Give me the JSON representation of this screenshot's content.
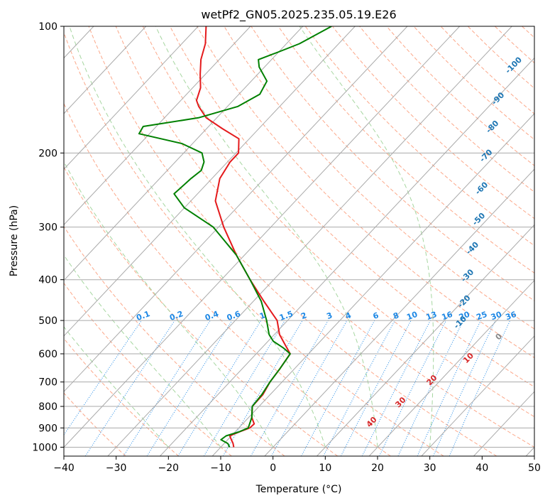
{
  "chart_data": {
    "type": "line",
    "title": "wetPf2_GN05.2025.235.05.19.E26",
    "xlabel": "Temperature (°C)",
    "ylabel": "Pressure (hPa)",
    "xlim": [
      -40,
      50
    ],
    "ylim": [
      1050,
      100
    ],
    "x_ticks": [
      -40,
      -30,
      -20,
      -10,
      0,
      10,
      20,
      30,
      40,
      50
    ],
    "x_tick_labels": [
      "−40",
      "−30",
      "−20",
      "−10",
      "0",
      "10",
      "20",
      "30",
      "40",
      "50"
    ],
    "y_ticks": [
      100,
      200,
      300,
      400,
      500,
      600,
      700,
      800,
      900,
      1000
    ],
    "y_tick_labels": [
      "100",
      "200",
      "300",
      "400",
      "500",
      "600",
      "700",
      "800",
      "900",
      "1000"
    ],
    "skew_ratio_dT_per_log10p": 75.7,
    "colors": {
      "temperature": "#e41a1c",
      "dewpoint": "#008000",
      "isotherm": "#aaaaaa",
      "dry_adiabat": "#fca88a",
      "moist_adiabat": "#a6d6a0",
      "mixing_ratio": "#1e88e5",
      "ccl": "#d8c0a0",
      "label_blue": "#1f77b4",
      "label_red": "#d62728"
    },
    "series": [
      {
        "name": "Temperature",
        "color": "#e41a1c",
        "points": [
          [
            1000,
            -7.5
          ],
          [
            980,
            -8.3
          ],
          [
            960,
            -9.3
          ],
          [
            940,
            -10.3
          ],
          [
            920,
            -9.2
          ],
          [
            900,
            -7.9
          ],
          [
            880,
            -7.8
          ],
          [
            850,
            -9.4
          ],
          [
            800,
            -11.3
          ],
          [
            750,
            -11.4
          ],
          [
            700,
            -12.3
          ],
          [
            650,
            -12.8
          ],
          [
            600,
            -13.5
          ],
          [
            570,
            -16.2
          ],
          [
            540,
            -19.0
          ],
          [
            500,
            -22.0
          ],
          [
            450,
            -28.0
          ],
          [
            400,
            -34.5
          ],
          [
            350,
            -41.5
          ],
          [
            300,
            -49.0
          ],
          [
            260,
            -55.3
          ],
          [
            230,
            -58.5
          ],
          [
            210,
            -59.5
          ],
          [
            200,
            -59.5
          ],
          [
            185,
            -62.0
          ],
          [
            175,
            -67.0
          ],
          [
            165,
            -72.0
          ],
          [
            155,
            -75.5
          ],
          [
            150,
            -77.0
          ],
          [
            140,
            -78.5
          ],
          [
            130,
            -81.0
          ],
          [
            120,
            -83.5
          ],
          [
            110,
            -85.5
          ],
          [
            100,
            -88.5
          ]
        ]
      },
      {
        "name": "Dewpoint",
        "color": "#008000",
        "points": [
          [
            1000,
            -8.3
          ],
          [
            980,
            -9.3
          ],
          [
            960,
            -11.3
          ],
          [
            940,
            -11.0
          ],
          [
            920,
            -9.3
          ],
          [
            900,
            -8.2
          ],
          [
            850,
            -9.4
          ],
          [
            800,
            -11.3
          ],
          [
            750,
            -11.6
          ],
          [
            700,
            -12.3
          ],
          [
            650,
            -12.8
          ],
          [
            600,
            -13.5
          ],
          [
            580,
            -16.0
          ],
          [
            560,
            -19.0
          ],
          [
            540,
            -21.0
          ],
          [
            500,
            -24.0
          ],
          [
            450,
            -28.5
          ],
          [
            400,
            -34.5
          ],
          [
            350,
            -41.5
          ],
          [
            300,
            -51.0
          ],
          [
            270,
            -60.0
          ],
          [
            250,
            -64.5
          ],
          [
            230,
            -64.0
          ],
          [
            220,
            -63.5
          ],
          [
            210,
            -64.5
          ],
          [
            200,
            -66.5
          ],
          [
            190,
            -72.0
          ],
          [
            180,
            -82.0
          ],
          [
            173,
            -82.5
          ],
          [
            165,
            -73.5
          ],
          [
            155,
            -68.0
          ],
          [
            145,
            -66.0
          ],
          [
            135,
            -67.0
          ],
          [
            125,
            -71.0
          ],
          [
            120,
            -72.5
          ],
          [
            115,
            -70.0
          ],
          [
            110,
            -67.5
          ],
          [
            100,
            -64.5
          ]
        ]
      }
    ],
    "mixing_ratio_labels": [
      "0.1",
      "0.2",
      "0.4",
      "0.6",
      "1",
      "1.5",
      "2",
      "3",
      "4",
      "6",
      "8",
      "10",
      "13",
      "16",
      "20",
      "25",
      "30",
      "36"
    ],
    "mixing_ratio_values": [
      0.1,
      0.2,
      0.4,
      0.6,
      1,
      1.5,
      2,
      3,
      4,
      6,
      8,
      10,
      13,
      16,
      20,
      25,
      30,
      36
    ],
    "isotherm_labels_blue": [
      {
        "value": -100,
        "text": "-100"
      },
      {
        "value": -90,
        "text": "-90"
      },
      {
        "value": -80,
        "text": "-80"
      },
      {
        "value": -70,
        "text": "-70"
      },
      {
        "value": -60,
        "text": "-60"
      },
      {
        "value": -50,
        "text": "-50"
      },
      {
        "value": -40,
        "text": "-40"
      },
      {
        "value": -30,
        "text": "-30"
      },
      {
        "value": -20,
        "text": "-20"
      },
      {
        "value": -10,
        "text": "-10"
      }
    ],
    "isotherm_labels_warm": [
      {
        "value": 0,
        "text": "0"
      },
      {
        "value": 10,
        "text": "10"
      },
      {
        "value": 20,
        "text": "20"
      },
      {
        "value": 30,
        "text": "30"
      },
      {
        "value": 40,
        "text": "40"
      }
    ]
  }
}
